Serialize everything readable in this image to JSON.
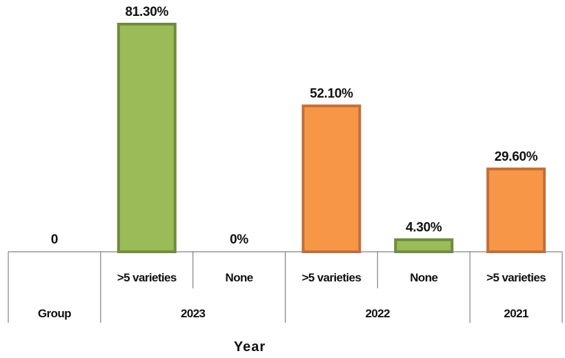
{
  "chart_data": {
    "type": "bar",
    "xlabel": "Year",
    "categories": [
      {
        "group": "Group",
        "sub": "",
        "value": 0,
        "label": "0",
        "color": ""
      },
      {
        "group": "2023",
        "sub": ">5 varieties",
        "value": 81.3,
        "label": "81.30%",
        "color": "#9bbb59"
      },
      {
        "group": "2023",
        "sub": "None",
        "value": 0,
        "label": "0%",
        "color": "#9bbb59"
      },
      {
        "group": "2022",
        "sub": ">5 varieties",
        "value": 52.1,
        "label": "52.10%",
        "color": "#f79646"
      },
      {
        "group": "2022",
        "sub": "None",
        "value": 4.3,
        "label": "4.30%",
        "color": "#9bbb59"
      },
      {
        "group": "2021",
        "sub": ">5 varieties",
        "value": 29.6,
        "label": "29.60%",
        "color": "#f79646"
      }
    ],
    "groups": [
      "Group",
      "2023",
      "2022",
      "2021"
    ],
    "ylim": [
      0,
      85
    ],
    "grid": false,
    "legend": "none",
    "colors": {
      "green_fill": "#9bbb59",
      "green_border": "#6e8b3d",
      "orange_fill": "#f79646",
      "orange_border": "#c0703a",
      "axis": "#808080"
    }
  }
}
